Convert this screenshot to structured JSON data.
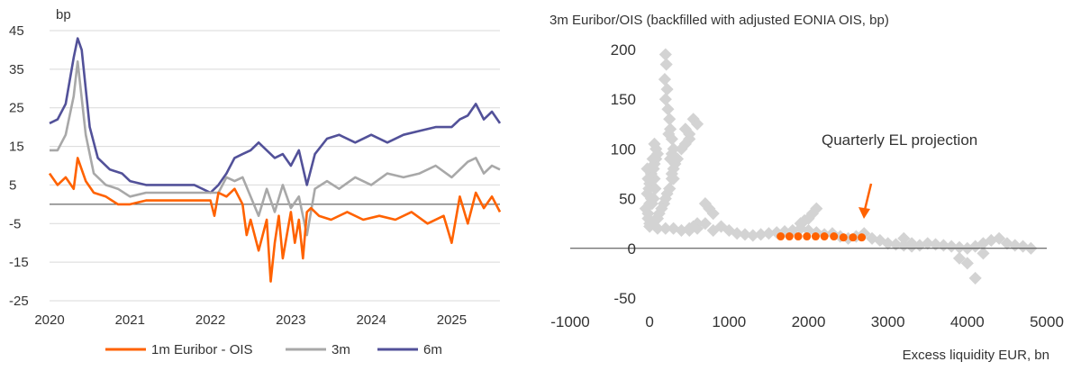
{
  "left_chart": {
    "unit_label": "bp",
    "legend": [
      "1m Euribor - OIS",
      "3m",
      "6m"
    ],
    "colors": {
      "1m": "#FF6200",
      "3m": "#A8A8A8",
      "6m": "#525199"
    }
  },
  "right_chart": {
    "title": "3m Euribor/OIS (backfilled with adjusted EONIA OIS, bp)",
    "xlabel": "Excess liquidity EUR, bn",
    "annotation": "Quarterly EL projection",
    "colors": {
      "history": "#D3D3D3",
      "projection": "#FF6200"
    }
  },
  "chart_data": [
    {
      "type": "line",
      "ylabel": "bp",
      "ylim": [
        -25,
        45
      ],
      "y_ticks": [
        "45",
        "35",
        "25",
        "15",
        "5",
        "-5",
        "-15",
        "-25"
      ],
      "xlim": [
        2020.0,
        2025.6
      ],
      "x_ticks": [
        "2020",
        "2021",
        "2022",
        "2023",
        "2024",
        "2025"
      ],
      "grid": true,
      "legend_position": "bottom",
      "series": [
        {
          "name": "1m Euribor - OIS",
          "x": [
            2020.0,
            2020.1,
            2020.2,
            2020.3,
            2020.35,
            2020.45,
            2020.55,
            2020.7,
            2020.85,
            2021.0,
            2021.2,
            2021.4,
            2021.6,
            2021.8,
            2022.0,
            2022.05,
            2022.1,
            2022.2,
            2022.3,
            2022.4,
            2022.45,
            2022.5,
            2022.6,
            2022.7,
            2022.75,
            2022.8,
            2022.85,
            2022.9,
            2022.95,
            2023.0,
            2023.05,
            2023.1,
            2023.15,
            2023.2,
            2023.25,
            2023.35,
            2023.5,
            2023.7,
            2023.9,
            2024.1,
            2024.3,
            2024.5,
            2024.7,
            2024.9,
            2025.0,
            2025.1,
            2025.2,
            2025.3,
            2025.4,
            2025.5,
            2025.6
          ],
          "y": [
            8,
            5,
            7,
            4,
            12,
            6,
            3,
            2,
            0,
            0,
            1,
            1,
            1,
            1,
            1,
            -3,
            3,
            2,
            4,
            0,
            -8,
            -4,
            -12,
            -4,
            -20,
            -10,
            -3,
            -14,
            -8,
            -2,
            -10,
            -4,
            -14,
            -2,
            -1,
            -3,
            -4,
            -2,
            -4,
            -3,
            -4,
            -2,
            -5,
            -3,
            -10,
            2,
            -5,
            3,
            -1,
            2,
            -2
          ]
        },
        {
          "name": "3m",
          "x": [
            2020.0,
            2020.1,
            2020.2,
            2020.3,
            2020.35,
            2020.45,
            2020.55,
            2020.7,
            2020.85,
            2021.0,
            2021.2,
            2021.4,
            2021.6,
            2021.8,
            2022.0,
            2022.1,
            2022.2,
            2022.3,
            2022.4,
            2022.5,
            2022.6,
            2022.7,
            2022.8,
            2022.9,
            2023.0,
            2023.1,
            2023.2,
            2023.3,
            2023.45,
            2023.6,
            2023.8,
            2024.0,
            2024.2,
            2024.4,
            2024.6,
            2024.8,
            2025.0,
            2025.1,
            2025.2,
            2025.3,
            2025.4,
            2025.5,
            2025.6
          ],
          "y": [
            14,
            14,
            18,
            28,
            37,
            18,
            8,
            5,
            4,
            2,
            3,
            3,
            3,
            3,
            3,
            3,
            7,
            6,
            7,
            2,
            -3,
            4,
            -2,
            5,
            -1,
            2,
            -8,
            4,
            6,
            4,
            7,
            5,
            8,
            7,
            8,
            10,
            7,
            9,
            11,
            12,
            8,
            10,
            9
          ]
        },
        {
          "name": "6m",
          "x": [
            2020.0,
            2020.1,
            2020.2,
            2020.3,
            2020.35,
            2020.4,
            2020.5,
            2020.6,
            2020.75,
            2020.9,
            2021.0,
            2021.2,
            2021.4,
            2021.6,
            2021.8,
            2022.0,
            2022.1,
            2022.2,
            2022.3,
            2022.4,
            2022.5,
            2022.6,
            2022.7,
            2022.8,
            2022.9,
            2023.0,
            2023.1,
            2023.2,
            2023.3,
            2023.45,
            2023.6,
            2023.8,
            2024.0,
            2024.2,
            2024.4,
            2024.6,
            2024.8,
            2025.0,
            2025.1,
            2025.2,
            2025.3,
            2025.4,
            2025.5,
            2025.6
          ],
          "y": [
            21,
            22,
            26,
            38,
            43,
            40,
            20,
            12,
            9,
            8,
            6,
            5,
            5,
            5,
            5,
            3,
            5,
            8,
            12,
            13,
            14,
            16,
            14,
            12,
            13,
            10,
            14,
            5,
            13,
            17,
            18,
            16,
            18,
            16,
            18,
            19,
            20,
            20,
            22,
            23,
            26,
            22,
            24,
            21
          ]
        }
      ]
    },
    {
      "type": "scatter",
      "title": "3m Euribor/OIS (backfilled with adjusted EONIA OIS, bp)",
      "xlabel": "Excess liquidity EUR, bn",
      "xlim": [
        -1000,
        5000
      ],
      "x_ticks": [
        "-1000",
        "0",
        "1000",
        "2000",
        "3000",
        "4000",
        "5000"
      ],
      "ylim": [
        -50,
        200
      ],
      "y_ticks": [
        "200",
        "150",
        "100",
        "50",
        "0",
        "-50"
      ],
      "grid": false,
      "series": [
        {
          "name": "history",
          "x": [
            200,
            210,
            190,
            220,
            200,
            230,
            250,
            260,
            240,
            280,
            300,
            280,
            260,
            320,
            300,
            280,
            250,
            220,
            200,
            180,
            150,
            120,
            100,
            60,
            20,
            0,
            -20,
            -50,
            -30,
            0,
            10,
            20,
            40,
            60,
            80,
            100,
            80,
            60,
            40,
            50,
            60,
            70,
            50,
            30,
            20,
            0,
            -10,
            -20,
            -30,
            -20,
            0,
            100,
            200,
            300,
            400,
            500,
            600,
            700,
            800,
            900,
            1000,
            1100,
            1200,
            1300,
            1400,
            1500,
            1600,
            1700,
            1800,
            1900,
            2000,
            2100,
            2200,
            2300,
            2400,
            2500,
            2600,
            2700,
            2800,
            2900,
            3000,
            3100,
            3200,
            3300,
            3400,
            3500,
            3600,
            3700,
            3800,
            3900,
            4000,
            4100,
            4200,
            4300,
            4400,
            4500,
            4600,
            4700,
            4800,
            4000,
            4100,
            3900,
            4200,
            450,
            500,
            400,
            550,
            600,
            500,
            450,
            350,
            300,
            250,
            280,
            700,
            750,
            800,
            600,
            550,
            500,
            1900,
            2000,
            2100,
            2050,
            1950,
            3200,
            3300
          ],
          "y": [
            195,
            185,
            170,
            160,
            150,
            140,
            130,
            120,
            115,
            110,
            100,
            95,
            90,
            85,
            80,
            70,
            60,
            55,
            50,
            45,
            40,
            35,
            30,
            28,
            25,
            22,
            30,
            40,
            55,
            65,
            70,
            75,
            80,
            85,
            90,
            95,
            100,
            105,
            90,
            80,
            70,
            60,
            50,
            45,
            50,
            45,
            60,
            70,
            80,
            35,
            25,
            20,
            20,
            20,
            18,
            18,
            20,
            25,
            18,
            22,
            18,
            15,
            14,
            13,
            14,
            15,
            16,
            17,
            18,
            20,
            18,
            16,
            14,
            15,
            12,
            10,
            12,
            15,
            10,
            8,
            5,
            4,
            3,
            2,
            3,
            5,
            4,
            3,
            2,
            1,
            0,
            2,
            5,
            8,
            10,
            5,
            3,
            2,
            0,
            -15,
            -30,
            -10,
            -5,
            120,
            110,
            100,
            130,
            125,
            115,
            105,
            90,
            70,
            60,
            75,
            45,
            40,
            35,
            25,
            22,
            20,
            25,
            30,
            40,
            35,
            28,
            10,
            5
          ]
        },
        {
          "name": "projection",
          "x": [
            1650,
            1760,
            1870,
            1980,
            2090,
            2200,
            2320,
            2440,
            2560,
            2670
          ],
          "y": [
            12,
            12,
            12,
            12,
            12,
            12,
            12,
            11,
            11,
            11
          ]
        }
      ],
      "annotations": [
        "Quarterly EL projection"
      ]
    }
  ]
}
